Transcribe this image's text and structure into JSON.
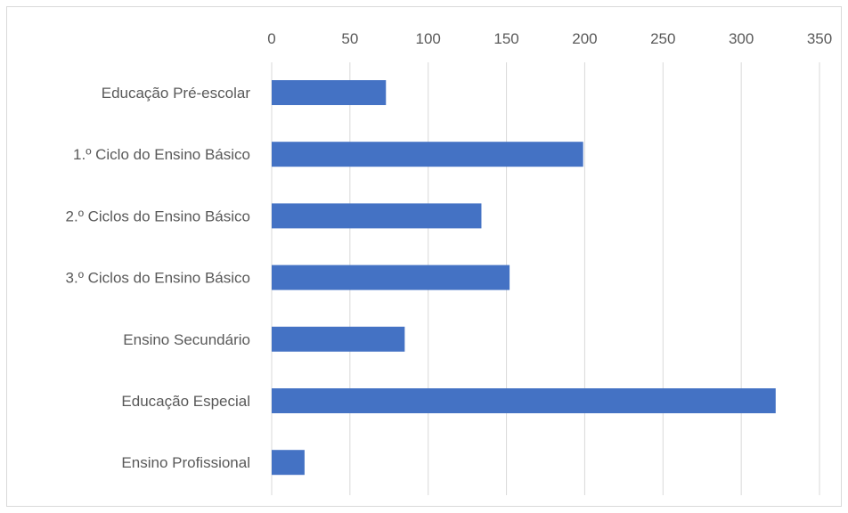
{
  "chart_data": {
    "type": "bar",
    "orientation": "horizontal",
    "title": "",
    "xlabel": "",
    "ylabel": "",
    "x_axis_position": "top",
    "xlim": [
      0,
      350
    ],
    "x_ticks": [
      0,
      50,
      100,
      150,
      200,
      250,
      300,
      350
    ],
    "grid": true,
    "legend": "none",
    "bar_color": "#4472C4",
    "categories": [
      "Educação Pré-escolar",
      "1.º Ciclo do Ensino Básico",
      "2.º Ciclos do Ensino Básico",
      "3.º Ciclos do Ensino Básico",
      "Ensino Secundário",
      "Educação Especial",
      "Ensino Profissional"
    ],
    "values": [
      73,
      199,
      134,
      152,
      85,
      322,
      21
    ]
  }
}
